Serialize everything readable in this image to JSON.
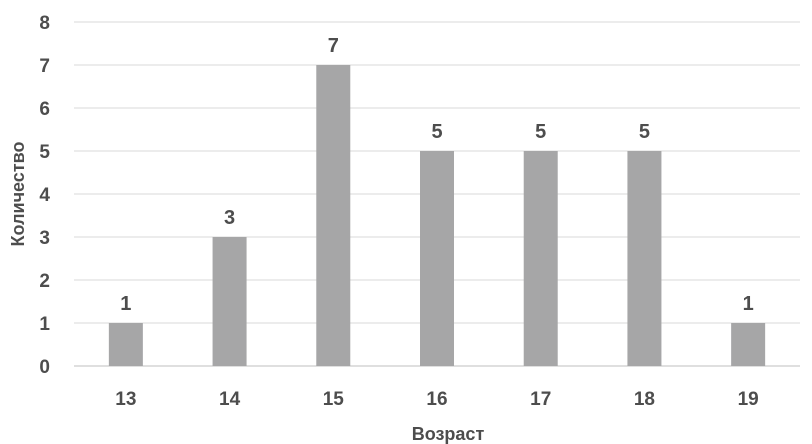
{
  "chart_data": {
    "type": "bar",
    "categories": [
      "13",
      "14",
      "15",
      "16",
      "17",
      "18",
      "19"
    ],
    "values": [
      1,
      3,
      7,
      5,
      5,
      5,
      1
    ],
    "title": "",
    "xlabel": "Возраст",
    "ylabel": "Количество",
    "ylim": [
      0,
      8
    ],
    "yticks": [
      0,
      1,
      2,
      3,
      4,
      5,
      6,
      7,
      8
    ],
    "grid": true,
    "legend": "none",
    "data_labels": true,
    "bar_color": "#a6a6a7",
    "text_color": "#4d4d4d",
    "grid_color": "#d9d9d9"
  }
}
